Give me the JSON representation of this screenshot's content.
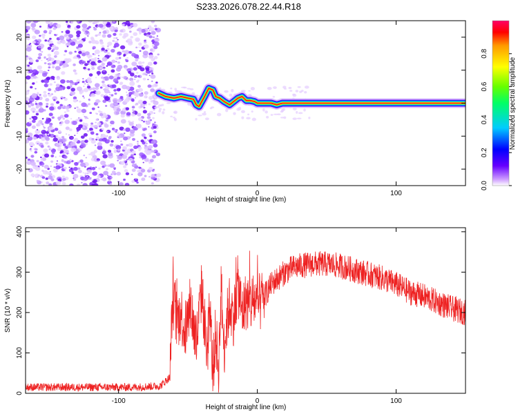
{
  "title": "S233.2026.078.22.44.R18",
  "chart_data": [
    {
      "type": "heatmap",
      "xlabel": "Height of straight line (km)",
      "ylabel": "Frequency (Hz)",
      "xlim": [
        -167,
        150
      ],
      "ylim": [
        -25,
        25
      ],
      "xticks": [
        -100,
        0,
        100
      ],
      "yticks": [
        -20,
        -10,
        0,
        10,
        20
      ],
      "xtick_labels": [
        "-100",
        "0",
        "100"
      ],
      "ytick_labels": [
        "-20",
        "-10",
        "0",
        "10",
        "20"
      ],
      "noise_region_x": [
        -167,
        -71
      ],
      "signal_start_x": -71,
      "ridge": {
        "x": [
          -71,
          -66,
          -60,
          -55,
          -50,
          -46,
          -44,
          -42,
          -40,
          -38,
          -35,
          -32,
          -30,
          -27,
          -24,
          -20,
          -17,
          -14,
          -11,
          -8,
          -5,
          -2,
          0,
          3,
          6,
          10,
          14,
          18,
          22,
          30,
          50,
          80,
          110,
          150
        ],
        "freq": [
          3,
          2,
          1.5,
          2,
          1.5,
          1.2,
          -0.5,
          -1,
          0.5,
          2,
          4.5,
          4,
          2,
          1.5,
          0.5,
          -0.5,
          0.5,
          1.5,
          2,
          0.8,
          0.8,
          0.5,
          0,
          0,
          0,
          0,
          -0.5,
          0,
          0,
          0,
          0,
          0,
          0,
          0
        ]
      },
      "colorbar": {
        "label": "Normalized spectral amplitude",
        "range": [
          0,
          1
        ],
        "ticks": [
          0.0,
          0.2,
          0.4,
          0.6,
          0.8
        ],
        "tick_labels": [
          "0.0",
          "0.2",
          "0.4",
          "0.6",
          "0.8"
        ],
        "colors": [
          "#ffffff",
          "#cc99ff",
          "#6600ff",
          "#0000ff",
          "#00ccff",
          "#00ff66",
          "#66ff00",
          "#ffff00",
          "#ff9900",
          "#ff0000",
          "#ff0066"
        ]
      }
    },
    {
      "type": "line",
      "xlabel": "Height of straight line (km)",
      "ylabel": "SNR (10 * v/v)",
      "xlim": [
        -167,
        150
      ],
      "ylim": [
        0,
        410
      ],
      "xticks": [
        -100,
        0,
        100
      ],
      "yticks": [
        0,
        100,
        200,
        300,
        400
      ],
      "xtick_labels": [
        "-100",
        "0",
        "100"
      ],
      "ytick_labels": [
        "0",
        "100",
        "200",
        "300",
        "400"
      ],
      "series": [
        {
          "name": "SNR",
          "color": "#ee2222",
          "x": [
            -167,
            -150,
            -120,
            -90,
            -70,
            -63,
            -61,
            -58,
            -55,
            -52,
            -48,
            -44,
            -40,
            -36,
            -34,
            -32,
            -30,
            -28,
            -26,
            -24,
            -22,
            -20,
            -17,
            -14,
            -11,
            -8,
            -5,
            -2,
            0,
            5,
            10,
            15,
            20,
            25,
            30,
            40,
            50,
            60,
            70,
            80,
            90,
            100,
            110,
            120,
            130,
            140,
            150
          ],
          "y": [
            15,
            15,
            15,
            15,
            18,
            40,
            240,
            180,
            200,
            150,
            220,
            120,
            260,
            80,
            200,
            50,
            150,
            60,
            260,
            110,
            180,
            220,
            190,
            270,
            200,
            230,
            220,
            230,
            215,
            240,
            270,
            285,
            300,
            310,
            315,
            320,
            320,
            315,
            305,
            295,
            285,
            270,
            250,
            240,
            225,
            210,
            200
          ]
        }
      ]
    }
  ]
}
